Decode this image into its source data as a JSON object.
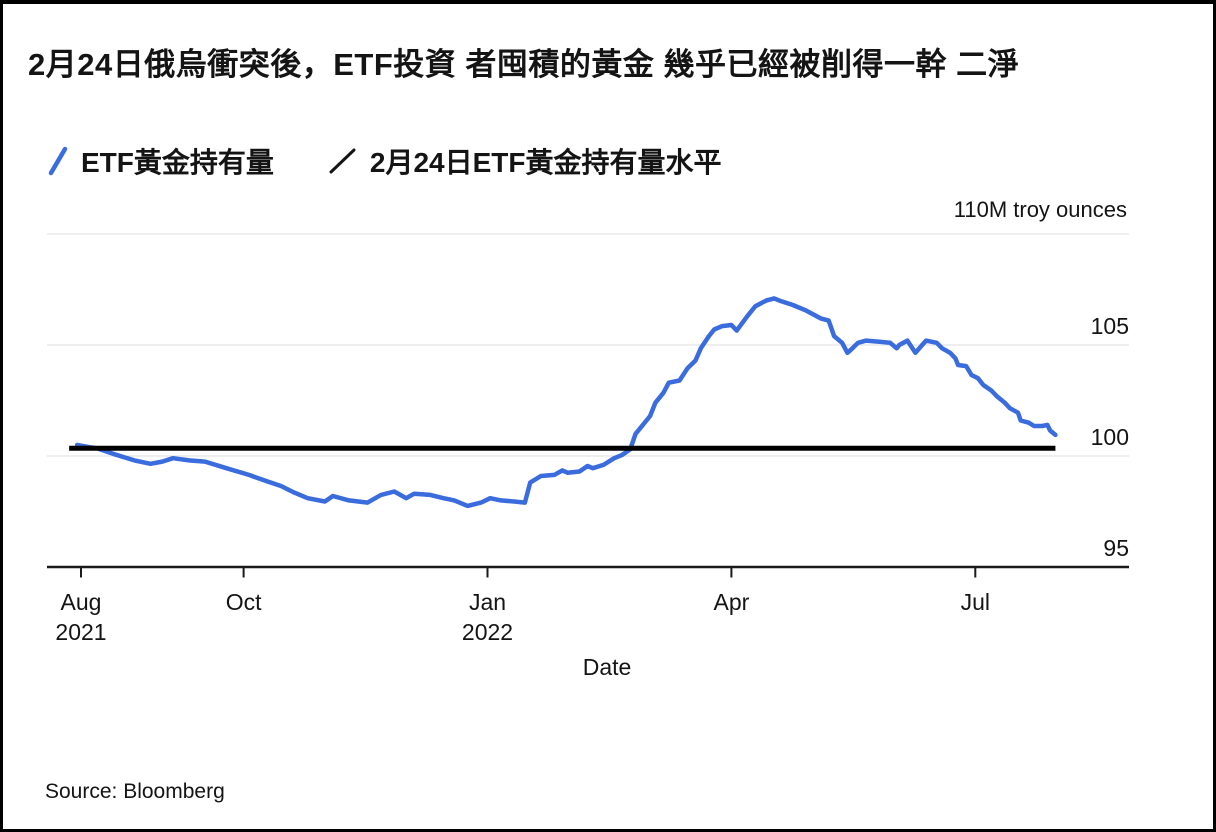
{
  "header": {
    "title": "2月24日俄烏衝突後，ETF投資 者囤積的黃金 幾乎已經被削得一幹 二淨"
  },
  "legend": {
    "items": [
      {
        "label": "ETF黃金持有量",
        "color": "#3A6CDD"
      },
      {
        "label": "2月24日ETF黃金持有量水平",
        "color": "#141414"
      }
    ]
  },
  "chart": {
    "unit_label": "110M troy ounces"
  },
  "footer": {
    "source": "Source: Bloomberg"
  },
  "chart_data": {
    "type": "line",
    "title": "2月24日俄烏衝突後，ETF投資 者囤積的黃金 幾乎已經被削得一幹 二淨",
    "xlabel": "Date",
    "ylabel_unit": "110M troy ounces",
    "ylim": [
      95,
      110
    ],
    "grid": "horizontal",
    "legend_position": "top",
    "gridline_values": [
      100,
      105,
      110
    ],
    "y_ticks": [
      {
        "value": 95,
        "label": "95"
      },
      {
        "value": 100,
        "label": "100"
      },
      {
        "value": 105,
        "label": "105"
      }
    ],
    "x_ticks": [
      {
        "date": "2021-08-01",
        "label": "Aug",
        "sublabel": "2021"
      },
      {
        "date": "2021-10-01",
        "label": "Oct"
      },
      {
        "date": "2022-01-01",
        "label": "Jan",
        "sublabel": "2022"
      },
      {
        "date": "2022-04-01",
        "label": "Apr"
      },
      {
        "date": "2022-07-01",
        "label": "Jul"
      }
    ],
    "reference_line": {
      "name": "2月24日ETF黃金持有量水平",
      "value": 100.35,
      "color": "#000000",
      "start_date": "2021-07-27",
      "end_date": "2022-07-31"
    },
    "series": [
      {
        "name": "ETF黃金持有量",
        "color": "#3A6CDD",
        "points": [
          [
            "2021-07-30",
            100.5
          ],
          [
            "2021-08-04",
            100.4
          ],
          [
            "2021-08-07",
            100.35
          ],
          [
            "2021-08-13",
            100.1
          ],
          [
            "2021-08-21",
            99.8
          ],
          [
            "2021-08-27",
            99.65
          ],
          [
            "2021-09-01",
            99.75
          ],
          [
            "2021-09-05",
            99.9
          ],
          [
            "2021-09-11",
            99.8
          ],
          [
            "2021-09-17",
            99.75
          ],
          [
            "2021-09-25",
            99.45
          ],
          [
            "2021-10-03",
            99.15
          ],
          [
            "2021-10-10",
            98.85
          ],
          [
            "2021-10-15",
            98.65
          ],
          [
            "2021-10-20",
            98.35
          ],
          [
            "2021-10-25",
            98.1
          ],
          [
            "2021-11-01",
            97.95
          ],
          [
            "2021-11-04",
            98.2
          ],
          [
            "2021-11-10",
            98.0
          ],
          [
            "2021-11-17",
            97.9
          ],
          [
            "2021-11-22",
            98.25
          ],
          [
            "2021-11-27",
            98.4
          ],
          [
            "2021-12-01",
            98.1
          ],
          [
            "2021-12-04",
            98.3
          ],
          [
            "2021-12-10",
            98.25
          ],
          [
            "2021-12-15",
            98.1
          ],
          [
            "2021-12-19",
            98.0
          ],
          [
            "2021-12-24",
            97.75
          ],
          [
            "2021-12-29",
            97.9
          ],
          [
            "2022-01-02",
            98.1
          ],
          [
            "2022-01-06",
            98.0
          ],
          [
            "2022-01-11",
            97.95
          ],
          [
            "2022-01-15",
            97.9
          ],
          [
            "2022-01-17",
            98.8
          ],
          [
            "2022-01-21",
            99.1
          ],
          [
            "2022-01-26",
            99.15
          ],
          [
            "2022-01-29",
            99.35
          ],
          [
            "2022-01-31",
            99.25
          ],
          [
            "2022-02-05",
            99.3
          ],
          [
            "2022-02-08",
            99.55
          ],
          [
            "2022-02-10",
            99.45
          ],
          [
            "2022-02-14",
            99.6
          ],
          [
            "2022-02-18",
            99.9
          ],
          [
            "2022-02-21",
            100.05
          ],
          [
            "2022-02-24",
            100.3
          ],
          [
            "2022-02-26",
            101.0
          ],
          [
            "2022-03-01",
            101.8
          ],
          [
            "2022-03-03",
            102.4
          ],
          [
            "2022-03-06",
            102.85
          ],
          [
            "2022-03-08",
            103.3
          ],
          [
            "2022-03-12",
            103.4
          ],
          [
            "2022-03-15",
            103.95
          ],
          [
            "2022-03-18",
            104.3
          ],
          [
            "2022-03-20",
            104.85
          ],
          [
            "2022-03-23",
            105.4
          ],
          [
            "2022-03-25",
            105.7
          ],
          [
            "2022-03-28",
            105.85
          ],
          [
            "2022-04-01",
            105.9
          ],
          [
            "2022-04-03",
            105.65
          ],
          [
            "2022-04-07",
            106.3
          ],
          [
            "2022-04-10",
            106.75
          ],
          [
            "2022-04-14",
            107.0
          ],
          [
            "2022-04-17",
            107.1
          ],
          [
            "2022-04-19",
            107.0
          ],
          [
            "2022-04-24",
            106.8
          ],
          [
            "2022-04-29",
            106.55
          ],
          [
            "2022-05-04",
            106.2
          ],
          [
            "2022-05-07",
            106.1
          ],
          [
            "2022-05-09",
            105.4
          ],
          [
            "2022-05-12",
            105.1
          ],
          [
            "2022-05-14",
            104.65
          ],
          [
            "2022-05-15",
            104.75
          ],
          [
            "2022-05-18",
            105.1
          ],
          [
            "2022-05-21",
            105.2
          ],
          [
            "2022-05-26",
            105.15
          ],
          [
            "2022-05-30",
            105.1
          ],
          [
            "2022-06-02",
            104.85
          ],
          [
            "2022-06-03",
            105.0
          ],
          [
            "2022-06-06",
            105.2
          ],
          [
            "2022-06-09",
            104.65
          ],
          [
            "2022-06-13",
            105.2
          ],
          [
            "2022-06-17",
            105.1
          ],
          [
            "2022-06-19",
            104.85
          ],
          [
            "2022-06-22",
            104.65
          ],
          [
            "2022-06-24",
            104.4
          ],
          [
            "2022-06-25",
            104.1
          ],
          [
            "2022-06-28",
            104.05
          ],
          [
            "2022-06-30",
            103.65
          ],
          [
            "2022-07-02",
            103.5
          ],
          [
            "2022-07-04",
            103.2
          ],
          [
            "2022-07-07",
            102.95
          ],
          [
            "2022-07-09",
            102.7
          ],
          [
            "2022-07-12",
            102.4
          ],
          [
            "2022-07-14",
            102.15
          ],
          [
            "2022-07-17",
            101.95
          ],
          [
            "2022-07-18",
            101.6
          ],
          [
            "2022-07-21",
            101.5
          ],
          [
            "2022-07-23",
            101.35
          ],
          [
            "2022-07-26",
            101.35
          ],
          [
            "2022-07-28",
            101.4
          ],
          [
            "2022-07-29",
            101.15
          ],
          [
            "2022-07-31",
            100.95
          ]
        ]
      }
    ]
  }
}
